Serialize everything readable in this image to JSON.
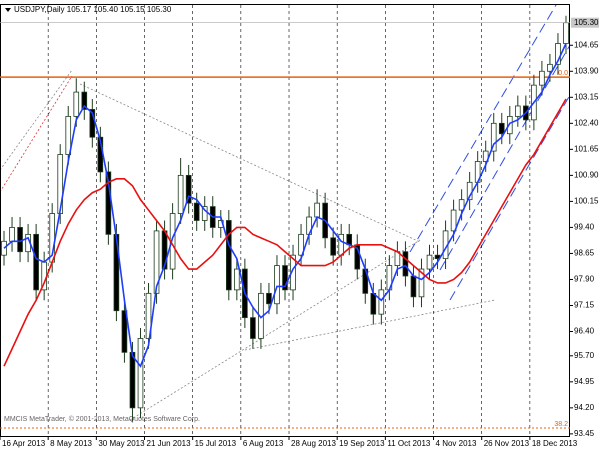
{
  "chart_data": {
    "type": "candlestick",
    "title": "USDJPY,Daily  105.17 105.40 105.15 105.30",
    "watermark": "MMCIS MetaTrader, © 2001-2013, MetaQuotes Software Corp.",
    "categories": [
      "16 Apr 2013",
      null,
      null,
      null,
      null,
      null,
      "8 May 2013",
      null,
      null,
      null,
      null,
      null,
      "30 May 2013",
      null,
      null,
      null,
      null,
      null,
      "21 Jun 2013",
      null,
      null,
      null,
      null,
      null,
      "15 Jul 2013",
      null,
      null,
      null,
      null,
      null,
      "6 Aug 2013",
      null,
      null,
      null,
      null,
      null,
      "28 Aug 2013",
      null,
      null,
      null,
      null,
      null,
      "19 Sep 2013",
      null,
      null,
      null,
      null,
      null,
      "11 Oct 2013",
      null,
      null,
      null,
      null,
      null,
      "4 Nov 2013",
      null,
      null,
      null,
      null,
      null,
      "26 Nov 2013",
      null,
      null,
      null,
      null,
      null,
      "18 Dec 2013",
      null,
      null,
      null,
      null
    ],
    "open": [
      98.6,
      99.0,
      99.4,
      98.7,
      99.2,
      97.6,
      98.4,
      99.8,
      101.5,
      102.6,
      103.3,
      102.8,
      102.0,
      101.0,
      99.2,
      97.0,
      95.8,
      94.2,
      96.2,
      97.5,
      99.3,
      98.2,
      99.8,
      100.9,
      100.1,
      99.6,
      100.0,
      99.4,
      99.6,
      97.6,
      98.2,
      96.8,
      96.2,
      97.5,
      97.2,
      98.3,
      97.6,
      98.6,
      99.2,
      99.7,
      100.1,
      99.1,
      98.6,
      99.2,
      98.9,
      98.2,
      97.5,
      96.9,
      97.6,
      98.3,
      98.7,
      98.0,
      97.4,
      98.2,
      98.6,
      98.5,
      99.3,
      99.9,
      100.2,
      100.7,
      101.3,
      101.6,
      102.4,
      102.1,
      102.6,
      102.9,
      102.5,
      103.5,
      103.9,
      104.1,
      104.7
    ],
    "high": [
      99.3,
      99.7,
      99.7,
      99.5,
      99.5,
      98.7,
      100.1,
      101.8,
      102.9,
      103.7,
      103.6,
      103.1,
      102.3,
      101.3,
      99.5,
      97.3,
      96.1,
      96.5,
      97.8,
      99.6,
      99.6,
      100.1,
      101.4,
      101.2,
      100.4,
      100.3,
      100.3,
      99.9,
      99.9,
      98.5,
      98.5,
      97.1,
      97.8,
      97.8,
      98.6,
      98.6,
      98.9,
      99.5,
      100.0,
      100.5,
      100.4,
      99.4,
      99.5,
      99.5,
      99.2,
      98.5,
      97.8,
      97.9,
      98.6,
      99.0,
      99.0,
      98.3,
      98.5,
      98.9,
      98.9,
      99.6,
      100.2,
      100.5,
      101.0,
      101.6,
      101.9,
      102.7,
      102.7,
      102.9,
      103.2,
      103.2,
      103.8,
      104.2,
      104.4,
      105.0,
      105.5
    ],
    "low": [
      98.3,
      98.7,
      98.4,
      98.4,
      97.3,
      97.3,
      98.1,
      99.5,
      101.2,
      102.3,
      102.5,
      101.7,
      100.7,
      98.9,
      96.7,
      95.5,
      93.8,
      93.9,
      95.9,
      97.2,
      97.9,
      97.9,
      99.5,
      99.8,
      99.3,
      99.3,
      99.1,
      99.1,
      97.3,
      97.3,
      96.5,
      95.9,
      95.9,
      96.9,
      96.9,
      97.3,
      97.3,
      98.3,
      98.9,
      99.4,
      98.8,
      98.3,
      98.3,
      98.6,
      97.9,
      97.2,
      96.6,
      96.6,
      97.3,
      98.0,
      97.7,
      97.1,
      97.1,
      97.9,
      98.2,
      98.2,
      99.0,
      99.6,
      99.9,
      100.4,
      101.0,
      101.3,
      101.8,
      101.8,
      102.3,
      102.2,
      102.2,
      103.2,
      103.6,
      103.8,
      104.4
    ],
    "close": [
      99.0,
      99.4,
      98.7,
      99.2,
      97.6,
      98.4,
      99.8,
      101.5,
      102.6,
      103.3,
      102.8,
      102.0,
      101.0,
      99.2,
      97.0,
      95.8,
      94.2,
      96.2,
      97.5,
      99.3,
      98.2,
      99.8,
      100.9,
      100.1,
      99.6,
      100.0,
      99.4,
      99.6,
      97.6,
      98.2,
      96.8,
      96.2,
      97.5,
      97.2,
      98.3,
      97.6,
      98.6,
      99.2,
      99.7,
      100.1,
      99.1,
      98.6,
      99.2,
      98.9,
      98.2,
      97.5,
      96.9,
      97.6,
      98.3,
      98.7,
      98.0,
      97.4,
      98.2,
      98.6,
      98.5,
      99.3,
      99.9,
      100.2,
      100.7,
      101.3,
      101.6,
      102.4,
      102.1,
      102.6,
      102.9,
      102.5,
      103.5,
      103.9,
      104.1,
      104.7,
      105.3
    ],
    "up_color": "#ffffff",
    "down_color": "#000000",
    "candle_outline": "#1e3d1e",
    "lines": [
      {
        "color": "#1e3cff",
        "values": [
          98.8,
          99.0,
          99.0,
          99.1,
          98.5,
          98.4,
          98.6,
          99.9,
          101.3,
          102.5,
          102.9,
          102.7,
          101.9,
          100.7,
          99.1,
          97.3,
          95.7,
          95.4,
          96.0,
          97.7,
          98.3,
          99.1,
          99.6,
          100.3,
          100.2,
          99.9,
          99.7,
          99.7,
          98.9,
          98.5,
          97.5,
          97.1,
          96.8,
          97.0,
          97.7,
          97.7,
          98.2,
          98.5,
          99.2,
          99.7,
          99.6,
          99.3,
          99.0,
          98.9,
          98.8,
          98.2,
          97.5,
          97.3,
          97.6,
          98.2,
          98.3,
          98.0,
          97.9,
          98.1,
          98.4,
          98.8,
          99.2,
          99.8,
          100.3,
          100.7,
          101.2,
          101.8,
          102.0,
          102.4,
          102.5,
          102.7,
          103.0,
          103.3,
          103.8,
          104.2,
          104.7
        ]
      },
      {
        "color": "#e81010",
        "values": [
          95.4,
          95.9,
          96.4,
          96.9,
          97.3,
          97.8,
          98.4,
          99.0,
          99.5,
          99.9,
          100.2,
          100.4,
          100.5,
          100.7,
          100.8,
          100.8,
          100.6,
          100.2,
          99.9,
          99.6,
          99.3,
          98.9,
          98.5,
          98.2,
          98.2,
          98.4,
          98.6,
          98.9,
          99.2,
          99.4,
          99.4,
          99.2,
          99.1,
          99.0,
          98.9,
          98.7,
          98.5,
          98.3,
          98.3,
          98.3,
          98.3,
          98.4,
          98.6,
          98.8,
          98.9,
          98.9,
          98.9,
          98.9,
          98.8,
          98.7,
          98.5,
          98.3,
          98.1,
          97.9,
          97.8,
          97.8,
          97.9,
          98.1,
          98.4,
          98.8,
          99.2,
          99.6,
          100.0,
          100.4,
          100.8,
          101.2,
          101.5,
          101.9,
          102.3,
          102.7,
          103.1
        ]
      }
    ],
    "fibo": [
      {
        "value": 103.73,
        "label": "0.0"
      },
      {
        "value": 93.62,
        "label": "38.2"
      }
    ],
    "fibo_color": "#e8600c",
    "current_price": {
      "value": 105.3,
      "label": "105.30"
    },
    "ylim": [
      93.36,
      105.81
    ],
    "yticks": [
      104.65,
      {
        "value": 103.9,
        "label": "103.90"
      },
      103.15,
      {
        "value": 102.4,
        "label": "102.40"
      },
      101.65,
      {
        "value": 100.9,
        "label": "100.90"
      },
      100.15,
      {
        "value": 99.4,
        "label": "99.40"
      },
      98.65,
      {
        "value": 97.9,
        "label": "97.90"
      },
      97.15,
      {
        "value": 96.4,
        "label": "96.40"
      },
      {
        "value": 95.7,
        "label": "95.70"
      },
      94.95,
      {
        "value": 94.2,
        "label": "94.20"
      },
      93.45
    ],
    "grid": true
  }
}
